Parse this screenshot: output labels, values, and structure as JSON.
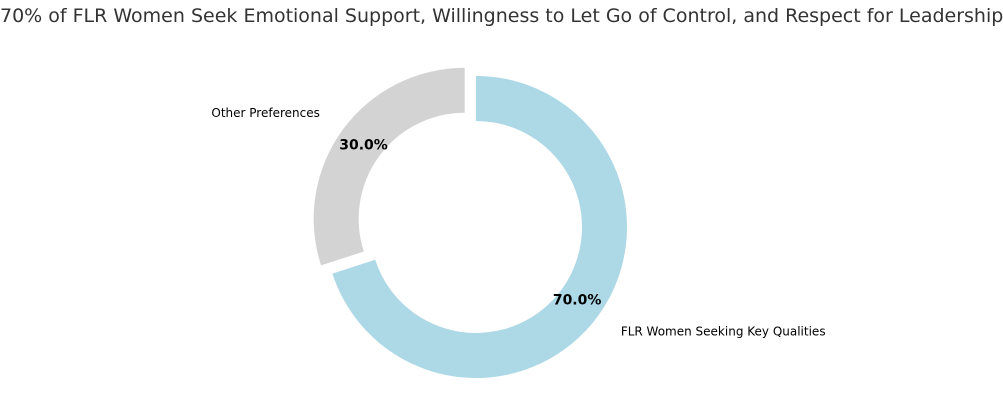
{
  "chart_data": {
    "type": "pie",
    "style": "donut",
    "title": "70% of FLR Women Seek Emotional Support, Willingness to Let Go of Control, and Respect for Leadership",
    "categories": [
      "FLR Women Seeking Key Qualities",
      "Other Preferences"
    ],
    "values": [
      70,
      30
    ],
    "value_labels": [
      "70.0%",
      "30.0%"
    ],
    "colors": [
      "#add8e6",
      "#d3d3d3"
    ],
    "exploded": [
      "Other Preferences"
    ],
    "legend": "none"
  }
}
